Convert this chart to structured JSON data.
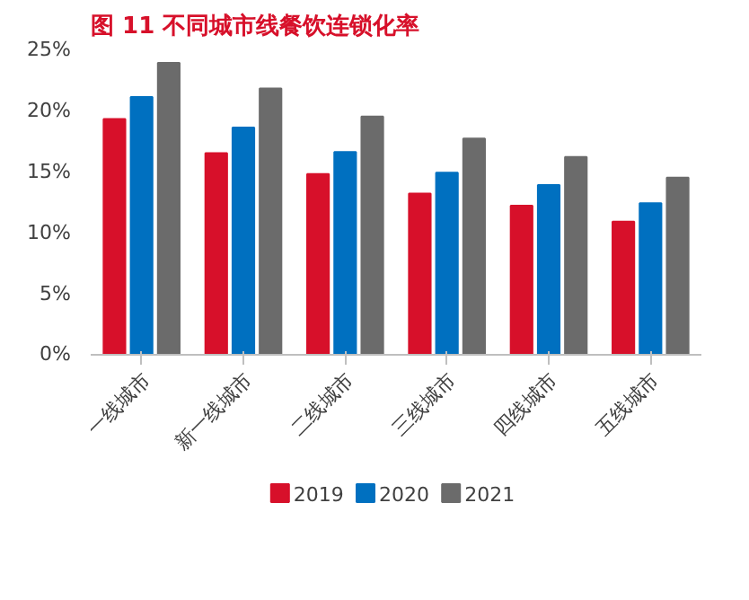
{
  "chart_data": {
    "type": "bar",
    "title": "图 11   不同城市线餐饮连锁化率",
    "categories": [
      "一线城市",
      "新一线城市",
      "二线城市",
      "三线城市",
      "四线城市",
      "五线城市"
    ],
    "series": [
      {
        "name": "2019",
        "color": "#d7102a",
        "values": [
          19.3,
          16.5,
          14.8,
          13.2,
          12.2,
          10.9
        ]
      },
      {
        "name": "2020",
        "color": "#0070c0",
        "values": [
          21.1,
          18.6,
          16.6,
          14.9,
          13.9,
          12.4
        ]
      },
      {
        "name": "2021",
        "color": "#6b6b6b",
        "values": [
          23.9,
          21.8,
          19.5,
          17.7,
          16.2,
          14.5
        ]
      }
    ],
    "ylim": [
      0,
      25
    ],
    "yticks": [
      {
        "value": 0,
        "label": "0%"
      },
      {
        "value": 5,
        "label": "5%"
      },
      {
        "value": 10,
        "label": "10%"
      },
      {
        "value": 15,
        "label": "15%"
      },
      {
        "value": 20,
        "label": "20%"
      },
      {
        "value": 25,
        "label": "25%"
      }
    ],
    "grid": false,
    "legend": "bottom"
  }
}
